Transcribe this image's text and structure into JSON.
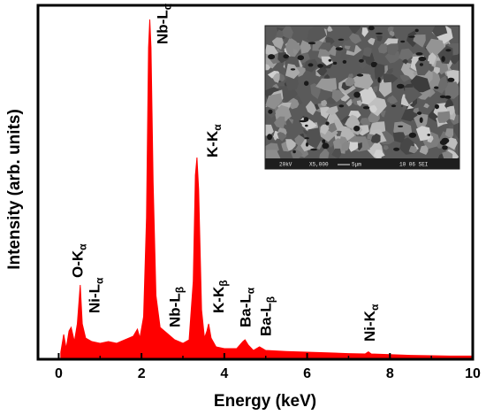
{
  "chart_data": {
    "type": "line",
    "xlabel": "Energy (keV)",
    "ylabel": "Intensity (arb. units)",
    "xlim": [
      -0.5,
      10
    ],
    "ylim": [
      0,
      100
    ],
    "x_ticks": [
      0,
      2,
      4,
      6,
      8,
      10
    ],
    "x_tick_labels": [
      "0",
      "2",
      "4",
      "6",
      "8",
      "10"
    ],
    "y_ticks_labeled": false,
    "grid": false,
    "series": [
      {
        "color": "#ff0000",
        "fill": true,
        "points": [
          [
            0.05,
            2
          ],
          [
            0.12,
            7
          ],
          [
            0.18,
            3
          ],
          [
            0.25,
            8
          ],
          [
            0.3,
            9
          ],
          [
            0.38,
            5
          ],
          [
            0.45,
            10
          ],
          [
            0.52,
            21
          ],
          [
            0.57,
            10
          ],
          [
            0.65,
            6
          ],
          [
            0.8,
            5
          ],
          [
            1.0,
            4.5
          ],
          [
            1.2,
            5
          ],
          [
            1.4,
            4.5
          ],
          [
            1.6,
            5.5
          ],
          [
            1.8,
            6.5
          ],
          [
            1.9,
            8.5
          ],
          [
            1.96,
            6
          ],
          [
            2.05,
            12
          ],
          [
            2.12,
            40
          ],
          [
            2.17,
            88
          ],
          [
            2.2,
            96
          ],
          [
            2.23,
            88
          ],
          [
            2.28,
            50
          ],
          [
            2.35,
            18
          ],
          [
            2.45,
            9
          ],
          [
            2.6,
            7.5
          ],
          [
            2.8,
            5.5
          ],
          [
            3.0,
            4.5
          ],
          [
            3.15,
            5.5
          ],
          [
            3.25,
            22
          ],
          [
            3.3,
            52
          ],
          [
            3.34,
            57
          ],
          [
            3.38,
            48
          ],
          [
            3.45,
            14
          ],
          [
            3.52,
            6
          ],
          [
            3.58,
            8
          ],
          [
            3.62,
            10
          ],
          [
            3.68,
            6
          ],
          [
            3.8,
            3.5
          ],
          [
            4.0,
            3
          ],
          [
            4.3,
            3
          ],
          [
            4.45,
            5
          ],
          [
            4.5,
            5.5
          ],
          [
            4.58,
            4
          ],
          [
            4.7,
            2.5
          ],
          [
            4.85,
            3.5
          ],
          [
            5.0,
            2.5
          ],
          [
            5.5,
            2.2
          ],
          [
            6.0,
            2
          ],
          [
            6.5,
            1.8
          ],
          [
            7.0,
            1.6
          ],
          [
            7.4,
            1.5
          ],
          [
            7.48,
            2.1
          ],
          [
            7.55,
            1.5
          ],
          [
            8.0,
            1.3
          ],
          [
            8.5,
            1.1
          ],
          [
            9.0,
            1
          ],
          [
            9.5,
            0.9
          ],
          [
            10.0,
            0.9
          ]
        ]
      }
    ],
    "annotations": [
      {
        "main": "O-K",
        "sub": "α",
        "x": 0.45,
        "y": 22
      },
      {
        "main": "Ni-L",
        "sub": "α",
        "x": 0.85,
        "y": 12
      },
      {
        "main": "Nb-L",
        "sub": "α",
        "x": 2.5,
        "y": 88
      },
      {
        "main": "Nb-L",
        "sub": "β",
        "x": 2.8,
        "y": 8
      },
      {
        "main": "K-K",
        "sub": "α",
        "x": 3.7,
        "y": 56
      },
      {
        "main": "K-K",
        "sub": "β",
        "x": 3.85,
        "y": 12
      },
      {
        "main": "Ba-L",
        "sub": "α",
        "x": 4.5,
        "y": 8
      },
      {
        "main": "Ba-L",
        "sub": "β",
        "x": 5.0,
        "y": 5.5
      },
      {
        "main": "Ni-K",
        "sub": "α",
        "x": 7.5,
        "y": 4
      }
    ],
    "inset": {
      "kind": "SEM micrograph",
      "caption_parts": [
        "20kV",
        "X5,000",
        "5μm",
        "10 06 SEI"
      ]
    }
  }
}
